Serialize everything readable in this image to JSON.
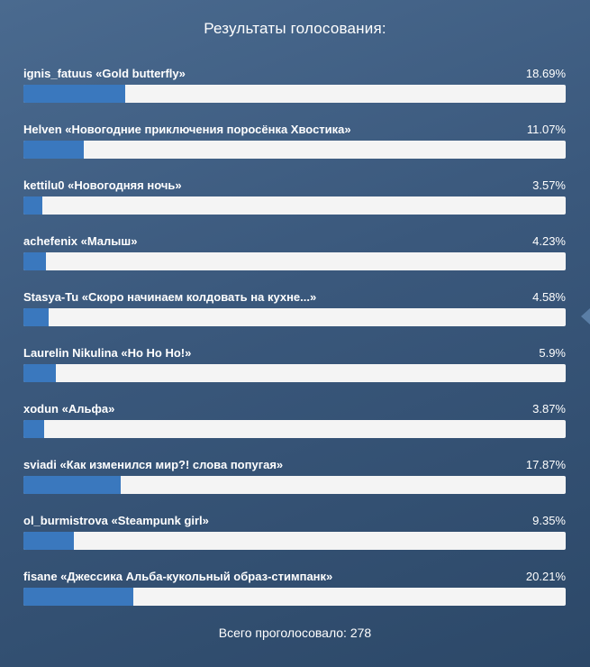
{
  "title": "Результаты голосования:",
  "results": [
    {
      "label": "ignis_fatuus «Gold butterfly»",
      "percent_text": "18.69%",
      "percent": 18.69
    },
    {
      "label": "Helven «Новогодние приключения поросёнка Хвостика»",
      "percent_text": "11.07%",
      "percent": 11.07
    },
    {
      "label": "kettilu0 «Новогодняя ночь»",
      "percent_text": "3.57%",
      "percent": 3.57
    },
    {
      "label": "achefenix «Малыш»",
      "percent_text": "4.23%",
      "percent": 4.23
    },
    {
      "label": "Stasya-Tu «Скоро начинаем колдовать на кухне...»",
      "percent_text": "4.58%",
      "percent": 4.58
    },
    {
      "label": "Laurelin Nikulina «Ho Ho Ho!»",
      "percent_text": "5.9%",
      "percent": 5.9
    },
    {
      "label": "xodun «Альфа»",
      "percent_text": "3.87%",
      "percent": 3.87
    },
    {
      "label": "sviadi «Как изменился мир?! слова попугая»",
      "percent_text": "17.87%",
      "percent": 17.87
    },
    {
      "label": "ol_burmistrova «Steampunk girl»",
      "percent_text": "9.35%",
      "percent": 9.35
    },
    {
      "label": "fisane «Джессика Альба-кукольный образ-стимпанк»",
      "percent_text": "20.21%",
      "percent": 20.21
    }
  ],
  "total_text": "Всего проголосовало: 278",
  "colors": {
    "bar_fill": "#3a78be",
    "bar_track": "#f4f4f4",
    "background": "#3a587c"
  }
}
